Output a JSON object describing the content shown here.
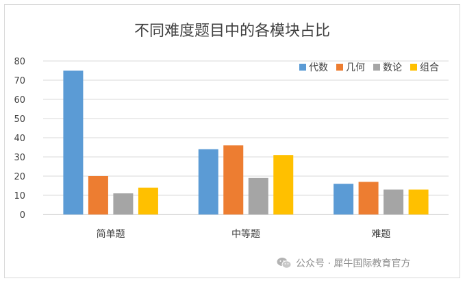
{
  "chart_data": {
    "type": "bar",
    "title": "不同难度题目中的各模块占比",
    "categories": [
      "简单题",
      "中等题",
      "难题"
    ],
    "series": [
      {
        "name": "代数",
        "color": "#5b9bd5",
        "values": [
          75,
          34,
          16
        ]
      },
      {
        "name": "几何",
        "color": "#ed7d31",
        "values": [
          20,
          36,
          17
        ]
      },
      {
        "name": "数论",
        "color": "#a5a5a5",
        "values": [
          11,
          19,
          13
        ]
      },
      {
        "name": "组合",
        "color": "#ffc000",
        "values": [
          14,
          31,
          13
        ]
      }
    ],
    "ylim": [
      0,
      80
    ],
    "yticks": [
      0,
      10,
      20,
      30,
      40,
      50,
      60,
      70,
      80
    ],
    "grid": true,
    "legend_position": "top-right"
  },
  "watermark": {
    "text": "公众号 · 犀牛国际教育官方",
    "icon": "wechat-icon"
  }
}
